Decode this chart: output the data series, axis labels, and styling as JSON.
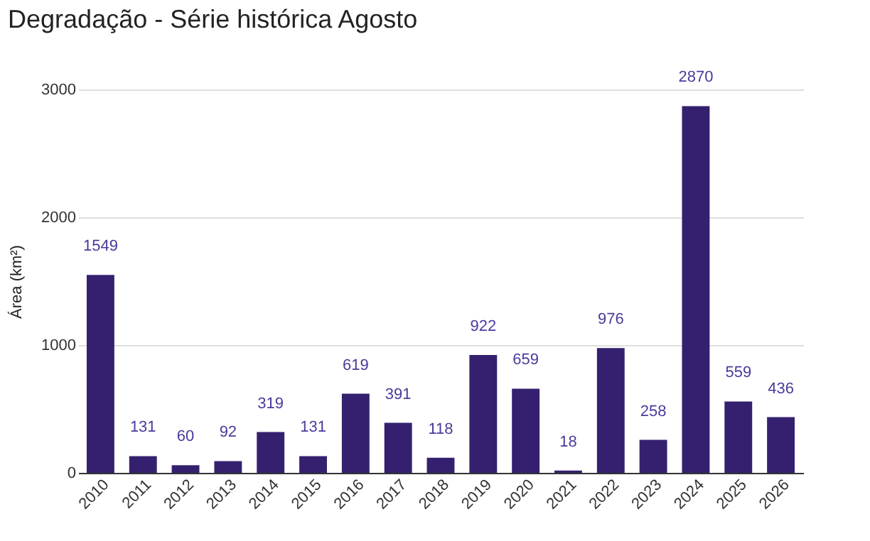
{
  "chart_data": {
    "type": "bar",
    "title": "Degradação - Série histórica Agosto",
    "ylabel": "Área (km²)",
    "categories": [
      "2010",
      "2011",
      "2012",
      "2013",
      "2014",
      "2015",
      "2016",
      "2017",
      "2018",
      "2019",
      "2020",
      "2021",
      "2022",
      "2023",
      "2024",
      "2025",
      "2026"
    ],
    "values": [
      1549,
      131,
      60,
      92,
      319,
      131,
      619,
      391,
      118,
      922,
      659,
      18,
      976,
      258,
      2870,
      559,
      436
    ],
    "color": "#35206f",
    "ylim": [
      0,
      3000
    ],
    "yticks": [
      0,
      1000,
      2000,
      3000
    ],
    "grid": "y",
    "data_labels": true
  }
}
